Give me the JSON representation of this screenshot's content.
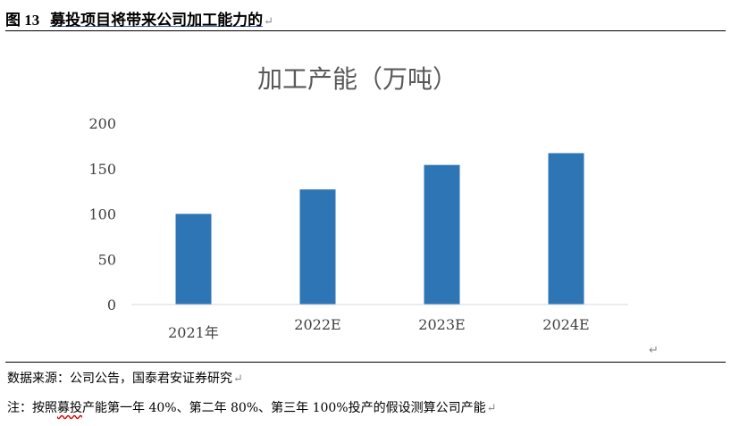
{
  "figure": {
    "label": "图 13",
    "title": "募投项目将带来公司加工能力的"
  },
  "chart_data": {
    "type": "bar",
    "title": "加工产能（万吨）",
    "categories": [
      "2021年",
      "2022E",
      "2023E",
      "2024E"
    ],
    "values": [
      100,
      127,
      154,
      167
    ],
    "ylim": [
      0,
      200
    ],
    "yticks": [
      0,
      50,
      100,
      150,
      200
    ],
    "xlabel": "",
    "ylabel": "",
    "grid": false,
    "legend": "none",
    "bar_color": "#2e75b6"
  },
  "footer": {
    "source_label": "数据来源：",
    "source_text": "公司公告，国泰君安证券研究",
    "note_label": "注：",
    "note_prefix": "按照",
    "note_wavy": "募投",
    "note_rest": "产能第一年 40%、第二年 80%、第三年 100%投产的假设测算公司产能"
  },
  "marks": {
    "paragraph": "↵"
  }
}
